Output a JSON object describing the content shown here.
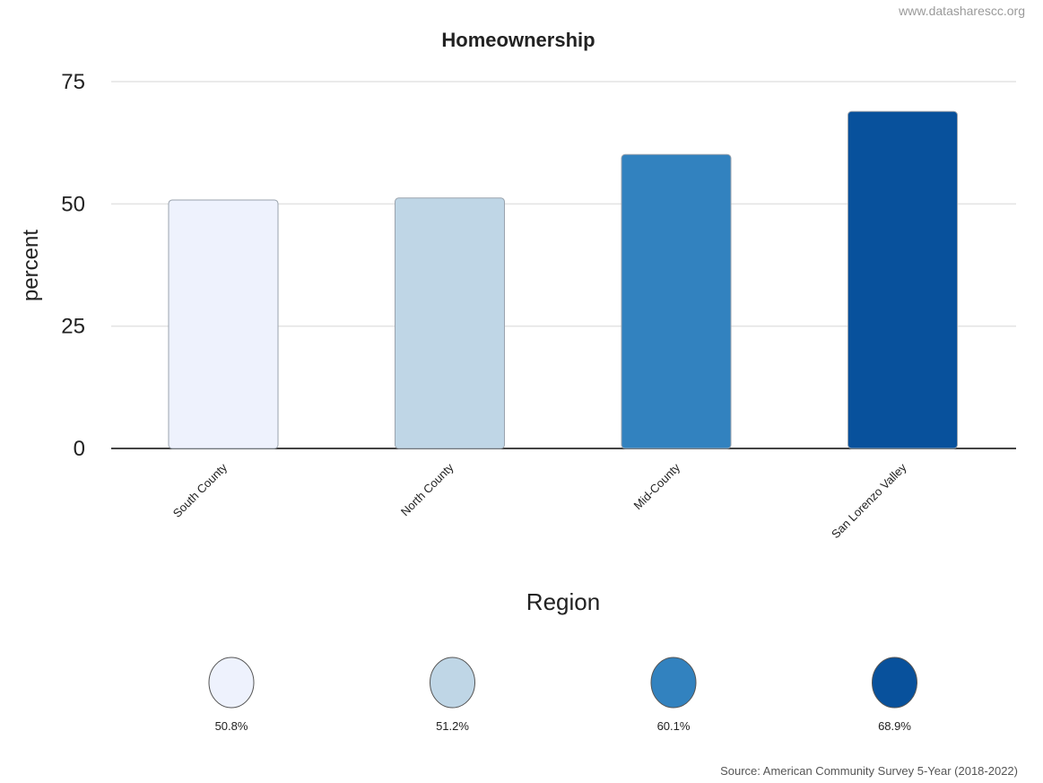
{
  "watermark": "www.datasharescc.org",
  "source": "Source: American Community Survey 5-Year (2018-2022)",
  "chart_data": {
    "type": "bar",
    "title": "Homeownership",
    "xlabel": "Region",
    "ylabel": "percent",
    "categories": [
      "South County",
      "North County",
      "Mid-County",
      "San Lorenzo Valley"
    ],
    "values": [
      50.8,
      51.2,
      60.1,
      68.9
    ],
    "value_labels": [
      "50.8%",
      "51.2%",
      "60.1%",
      "68.9%"
    ],
    "colors": [
      "#eef2fd",
      "#bfd6e6",
      "#3282bf",
      "#08519c"
    ],
    "yticks": [
      0,
      25,
      50,
      75
    ],
    "ylim": [
      0,
      75
    ],
    "grid": true,
    "legend": "bottom"
  }
}
